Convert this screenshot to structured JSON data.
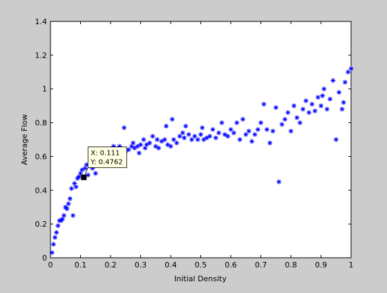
{
  "chart_data": {
    "type": "scatter",
    "title": "",
    "xlabel": "Initial Density",
    "ylabel": "Average Flow",
    "xlim": [
      0,
      1
    ],
    "ylim": [
      0,
      1.4
    ],
    "x_ticks": [
      0,
      0.1,
      0.2,
      0.3,
      0.4,
      0.5,
      0.6,
      0.7,
      0.8,
      0.9,
      1
    ],
    "x_tick_labels": [
      "0",
      "0.1",
      "0.2",
      "0.3",
      "0.4",
      "0.5",
      "0.6",
      "0.7",
      "0.8",
      "0.9",
      "1"
    ],
    "y_ticks": [
      0,
      0.2,
      0.4,
      0.6,
      0.8,
      1,
      1.2,
      1.4
    ],
    "y_tick_labels": [
      "0",
      "0.2",
      "0.4",
      "0.6",
      "0.8",
      "1",
      "1.2",
      "1.4"
    ],
    "grid": false,
    "marker": "*",
    "series_color": "#0000ff",
    "datatip": {
      "x": 0.111,
      "y": 0.4762,
      "x_text": "X: 0.111",
      "y_text": "Y: 0.4762"
    },
    "x": [
      0.005,
      0.01,
      0.015,
      0.02,
      0.025,
      0.03,
      0.035,
      0.04,
      0.045,
      0.05,
      0.055,
      0.06,
      0.065,
      0.07,
      0.075,
      0.08,
      0.085,
      0.09,
      0.095,
      0.1,
      0.105,
      0.115,
      0.12,
      0.125,
      0.13,
      0.14,
      0.15,
      0.155,
      0.16,
      0.17,
      0.175,
      0.18,
      0.19,
      0.2,
      0.205,
      0.21,
      0.22,
      0.225,
      0.23,
      0.24,
      0.245,
      0.25,
      0.26,
      0.27,
      0.275,
      0.28,
      0.29,
      0.295,
      0.3,
      0.31,
      0.315,
      0.32,
      0.33,
      0.34,
      0.35,
      0.355,
      0.36,
      0.37,
      0.38,
      0.385,
      0.39,
      0.4,
      0.405,
      0.41,
      0.42,
      0.43,
      0.44,
      0.445,
      0.45,
      0.46,
      0.47,
      0.48,
      0.49,
      0.5,
      0.505,
      0.51,
      0.52,
      0.53,
      0.54,
      0.55,
      0.56,
      0.57,
      0.58,
      0.59,
      0.6,
      0.61,
      0.62,
      0.63,
      0.64,
      0.65,
      0.66,
      0.67,
      0.68,
      0.69,
      0.7,
      0.71,
      0.72,
      0.73,
      0.74,
      0.75,
      0.76,
      0.77,
      0.78,
      0.79,
      0.8,
      0.81,
      0.82,
      0.83,
      0.84,
      0.85,
      0.86,
      0.87,
      0.88,
      0.89,
      0.9,
      0.905,
      0.91,
      0.92,
      0.93,
      0.94,
      0.95,
      0.96,
      0.97,
      0.975,
      0.98,
      0.99,
      1.0
    ],
    "y": [
      0.03,
      0.08,
      0.12,
      0.15,
      0.19,
      0.22,
      0.22,
      0.23,
      0.25,
      0.3,
      0.29,
      0.32,
      0.35,
      0.41,
      0.25,
      0.44,
      0.42,
      0.47,
      0.48,
      0.5,
      0.52,
      0.53,
      0.55,
      0.49,
      0.56,
      0.53,
      0.5,
      0.55,
      0.6,
      0.58,
      0.62,
      0.57,
      0.59,
      0.6,
      0.64,
      0.66,
      0.62,
      0.63,
      0.66,
      0.6,
      0.77,
      0.63,
      0.64,
      0.66,
      0.68,
      0.65,
      0.66,
      0.62,
      0.67,
      0.7,
      0.65,
      0.67,
      0.68,
      0.72,
      0.66,
      0.7,
      0.65,
      0.69,
      0.7,
      0.78,
      0.67,
      0.66,
      0.82,
      0.7,
      0.68,
      0.72,
      0.74,
      0.71,
      0.78,
      0.73,
      0.7,
      0.72,
      0.7,
      0.73,
      0.77,
      0.7,
      0.71,
      0.72,
      0.76,
      0.71,
      0.74,
      0.8,
      0.73,
      0.72,
      0.76,
      0.74,
      0.8,
      0.7,
      0.82,
      0.73,
      0.75,
      0.69,
      0.73,
      0.76,
      0.8,
      0.91,
      0.76,
      0.68,
      0.75,
      0.89,
      0.45,
      0.79,
      0.82,
      0.86,
      0.75,
      0.9,
      0.83,
      0.8,
      0.88,
      0.93,
      0.86,
      0.91,
      0.87,
      0.95,
      0.9,
      0.96,
      1.0,
      0.88,
      0.94,
      1.05,
      0.7,
      0.98,
      0.88,
      0.92,
      1.04,
      1.1,
      1.12
    ]
  }
}
